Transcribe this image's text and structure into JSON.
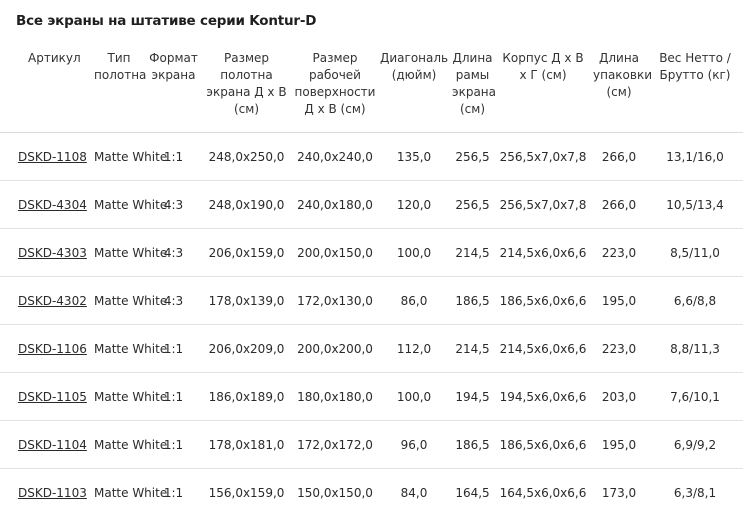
{
  "title": "Все экраны на штативе серии Kontur-D",
  "columns": [
    "Артикул",
    "Тип полотна",
    "Формат экрана",
    "Размер полотна экрана Д х В (см)",
    "Размер рабочей поверхности Д х В (см)",
    "Диагональ (дюйм)",
    "Длина рамы экрана (см)",
    "Корпус Д х В х Г (см)",
    "Длина упаковки (см)",
    "Вес Нетто / Брутто (кг)"
  ],
  "rows": [
    [
      "DSKD-1108",
      "Matte White",
      "1:1",
      "248,0x250,0",
      "240,0x240,0",
      "135,0",
      "256,5",
      "256,5x7,0x7,8",
      "266,0",
      "13,1/16,0"
    ],
    [
      "DSKD-4304",
      "Matte White",
      "4:3",
      "248,0x190,0",
      "240,0x180,0",
      "120,0",
      "256,5",
      "256,5x7,0x7,8",
      "266,0",
      "10,5/13,4"
    ],
    [
      "DSKD-4303",
      "Matte White",
      "4:3",
      "206,0x159,0",
      "200,0x150,0",
      "100,0",
      "214,5",
      "214,5x6,0x6,6",
      "223,0",
      "8,5/11,0"
    ],
    [
      "DSKD-4302",
      "Matte White",
      "4:3",
      "178,0x139,0",
      "172,0x130,0",
      "86,0",
      "186,5",
      "186,5x6,0x6,6",
      "195,0",
      "6,6/8,8"
    ],
    [
      "DSKD-1106",
      "Matte White",
      "1:1",
      "206,0x209,0",
      "200,0x200,0",
      "112,0",
      "214,5",
      "214,5x6,0x6,6",
      "223,0",
      "8,8/11,3"
    ],
    [
      "DSKD-1105",
      "Matte White",
      "1:1",
      "186,0x189,0",
      "180,0x180,0",
      "100,0",
      "194,5",
      "194,5x6,0x6,6",
      "203,0",
      "7,6/10,1"
    ],
    [
      "DSKD-1104",
      "Matte White",
      "1:1",
      "178,0x181,0",
      "172,0x172,0",
      "96,0",
      "186,5",
      "186,5x6,0x6,6",
      "195,0",
      "6,9/9,2"
    ],
    [
      "DSKD-1103",
      "Matte White",
      "1:1",
      "156,0x159,0",
      "150,0x150,0",
      "84,0",
      "164,5",
      "164,5x6,0x6,6",
      "173,0",
      "6,3/8,1"
    ]
  ]
}
